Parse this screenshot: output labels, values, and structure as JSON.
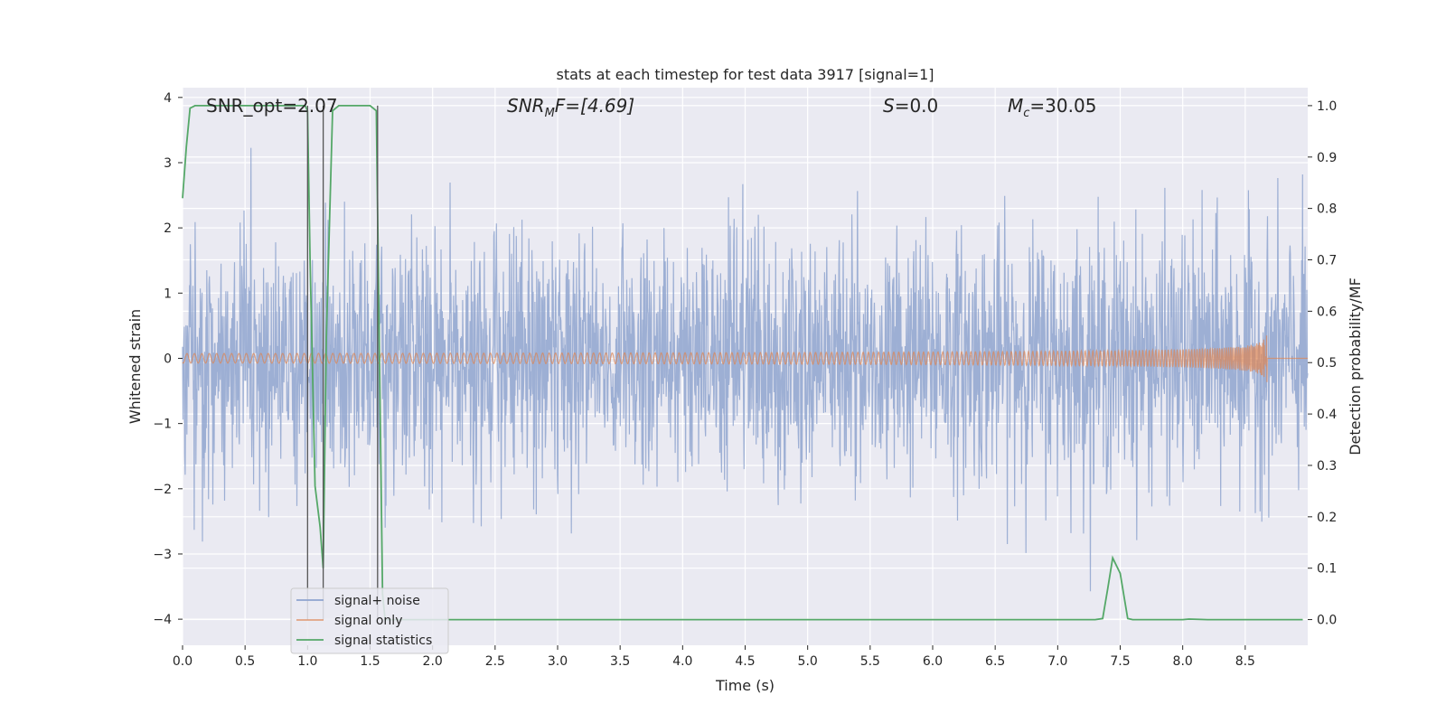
{
  "chart_data": {
    "type": "line",
    "title": "stats at each timestep for test data 3917 [signal=1]",
    "xlabel": "Time (s)",
    "ylabel": "Whitened strain",
    "ylabel_right": "Detection probability/MF",
    "xlim": [
      0.0,
      9.0
    ],
    "ylim": [
      -4.4,
      4.15
    ],
    "ylim_right": [
      -0.05,
      1.035
    ],
    "x_ticks": [
      "0.0",
      "0.5",
      "1.0",
      "1.5",
      "2.0",
      "2.5",
      "3.0",
      "3.5",
      "4.0",
      "4.5",
      "5.0",
      "5.5",
      "6.0",
      "6.5",
      "7.0",
      "7.5",
      "8.0",
      "8.5"
    ],
    "y_ticks": [
      "4",
      "3",
      "2",
      "1",
      "0",
      "−1",
      "−2",
      "−3",
      "−4"
    ],
    "y_ticks_right": [
      "1.0",
      "0.9",
      "0.8",
      "0.7",
      "0.6",
      "0.5",
      "0.4",
      "0.3",
      "0.2",
      "0.1",
      "0.0"
    ],
    "grid": true,
    "legend_position": "lower-left",
    "annotations": {
      "snr_opt": "SNR_opt=2.07",
      "snr_mf_pre": "SNR",
      "snr_mf_sub": "M",
      "snr_mf_post": "F=[4.69]",
      "s_pre": "S",
      "s_post": "=0.0",
      "mc_pre": "M",
      "mc_sub": "c",
      "mc_post": "=30.05"
    },
    "vlines_x": [
      1.0,
      1.125,
      1.56
    ],
    "series": [
      {
        "name": "signal+ noise",
        "color": "#8fa4cf",
        "noise_std": 0.95,
        "x_range": [
          0.0,
          9.0
        ]
      },
      {
        "name": "signal only",
        "color": "#dd8452",
        "chirp_end_x": 8.68,
        "chirp_peak_amplitude": 0.5
      },
      {
        "name": "signal statistics",
        "color": "#55a868",
        "axis": "right",
        "x": [
          0.0,
          0.03,
          0.06,
          0.1,
          0.15,
          0.25,
          0.5,
          0.75,
          0.98,
          1.0,
          1.02,
          1.06,
          1.1,
          1.125,
          1.15,
          1.2,
          1.25,
          1.5,
          1.55,
          1.57,
          1.6,
          1.62,
          1.65,
          2.0,
          3.0,
          4.0,
          5.0,
          6.0,
          7.0,
          7.3,
          7.36,
          7.4,
          7.44,
          7.5,
          7.56,
          7.6,
          8.0,
          8.05,
          8.2,
          8.5,
          8.96
        ],
        "y": [
          0.82,
          0.92,
          0.995,
          1.0,
          1.0,
          1.0,
          1.0,
          1.0,
          1.0,
          0.99,
          0.7,
          0.26,
          0.18,
          0.1,
          0.55,
          0.99,
          1.0,
          1.0,
          0.99,
          0.6,
          0.05,
          0.0,
          0.0,
          0.0,
          0.0,
          0.0,
          0.0,
          0.0,
          0.0,
          0.0,
          0.002,
          0.06,
          0.12,
          0.09,
          0.002,
          0.0,
          0.0,
          0.001,
          0.0,
          0.0,
          0.0
        ]
      }
    ]
  }
}
